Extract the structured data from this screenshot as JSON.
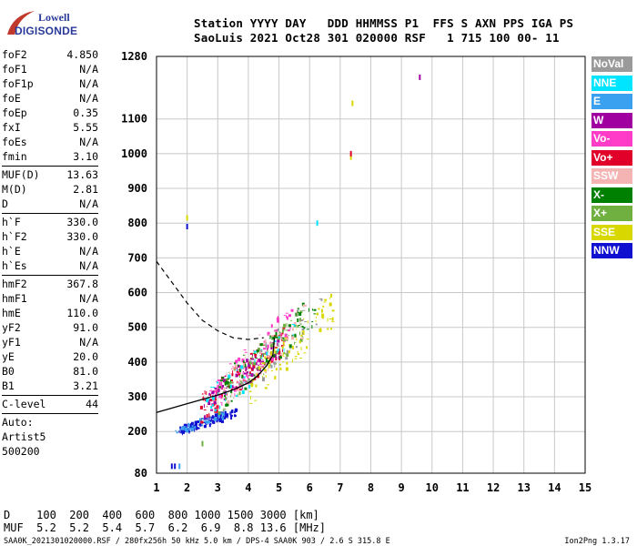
{
  "logo": {
    "line1": "Lowell",
    "line2": "DIGISONDE"
  },
  "header": {
    "line1": "Station YYYY DAY   DDD HHMMSS P1  FFS S AXN PPS IGA PS",
    "line2": "SaoLuis 2021 Oct28 301 020000 RSF   1 715 100 00- 11"
  },
  "params_group1": [
    {
      "name": "foF2",
      "value": "4.850"
    },
    {
      "name": "foF1",
      "value": "N/A"
    },
    {
      "name": "foF1p",
      "value": "N/A"
    },
    {
      "name": "foE",
      "value": "N/A"
    },
    {
      "name": "foEp",
      "value": "0.35"
    },
    {
      "name": "fxI",
      "value": "5.55"
    },
    {
      "name": "foEs",
      "value": "N/A"
    },
    {
      "name": "fmin",
      "value": "3.10"
    }
  ],
  "params_group2": [
    {
      "name": "MUF(D)",
      "value": "13.63"
    },
    {
      "name": "M(D)",
      "value": "2.81"
    },
    {
      "name": "D",
      "value": "N/A"
    }
  ],
  "params_group3": [
    {
      "name": "h`F",
      "value": "330.0"
    },
    {
      "name": "h`F2",
      "value": "330.0"
    },
    {
      "name": "h`E",
      "value": "N/A"
    },
    {
      "name": "h`Es",
      "value": "N/A"
    }
  ],
  "params_group4": [
    {
      "name": "hmF2",
      "value": "367.8"
    },
    {
      "name": "hmF1",
      "value": "N/A"
    },
    {
      "name": "hmE",
      "value": "110.0"
    },
    {
      "name": "yF2",
      "value": "91.0"
    },
    {
      "name": "yF1",
      "value": "N/A"
    },
    {
      "name": "yE",
      "value": "20.0"
    },
    {
      "name": "B0",
      "value": "81.0"
    },
    {
      "name": "B1",
      "value": "3.21"
    }
  ],
  "params_group5": [
    {
      "name": "C-level",
      "value": "44"
    }
  ],
  "autoscaling": {
    "line1": "Auto:",
    "line2": "Artist5",
    "line3": "500200"
  },
  "legend": [
    {
      "label": "NoVal",
      "color": "#9a9a9a"
    },
    {
      "label": "NNE",
      "color": "#00e5ff"
    },
    {
      "label": "E",
      "color": "#3aa0f0"
    },
    {
      "label": "W",
      "color": "#a000a0"
    },
    {
      "label": "Vo-",
      "color": "#ff3cc8"
    },
    {
      "label": "Vo+",
      "color": "#e0002a"
    },
    {
      "label": "SSW",
      "color": "#f4b4b4"
    },
    {
      "label": "X-",
      "color": "#008000"
    },
    {
      "label": "X+",
      "color": "#70b040"
    },
    {
      "label": "SSE",
      "color": "#d8d800"
    },
    {
      "label": "NNW",
      "color": "#1010d0"
    }
  ],
  "muf_table": {
    "line1": "D    100  200  400  600  800 1000 1500 3000 [km]",
    "line2": "MUF  5.2  5.2  5.4  5.7  6.2  6.9  8.8 13.6 [MHz]"
  },
  "footer": {
    "left": "SAA0K_2021301020000.RSF / 280fx256h 50 kHz 5.0 km / DPS-4 SAA0K 903 / 2.6 S 315.8 E",
    "right": "Ion2Png 1.3.17"
  },
  "chart_data": {
    "type": "scatter",
    "title": "",
    "xlabel": "",
    "ylabel": "",
    "xlim": [
      1,
      15
    ],
    "ylim": [
      80,
      1280
    ],
    "xticks": [
      "1",
      "2",
      "3",
      "4",
      "5",
      "6",
      "7",
      "8",
      "9",
      "10",
      "11",
      "12",
      "13",
      "14",
      "15"
    ],
    "yticks": [
      "80",
      "200",
      "300",
      "400",
      "500",
      "600",
      "700",
      "800",
      "900",
      "1000",
      "1100",
      "1280"
    ],
    "grid": true,
    "trace_curve": {
      "x": [
        1.0,
        2.0,
        3.0,
        3.5,
        4.0,
        4.3,
        4.6,
        4.8,
        4.85
      ],
      "y": [
        255,
        280,
        305,
        320,
        340,
        360,
        390,
        420,
        470
      ]
    },
    "dashed_curve": {
      "x": [
        1.0,
        1.5,
        2.0,
        2.5,
        3.0,
        3.5,
        4.0,
        4.5
      ],
      "y": [
        690,
        630,
        570,
        520,
        490,
        470,
        465,
        470
      ]
    },
    "clusters": [
      {
        "series": "NNW",
        "x": [
          1.7,
          3.6
        ],
        "y": [
          200,
          270
        ],
        "n": 140
      },
      {
        "series": "E",
        "x": [
          1.6,
          3.2
        ],
        "y": [
          200,
          260
        ],
        "n": 40
      },
      {
        "series": "Vo+",
        "x": [
          2.4,
          5.2
        ],
        "y": [
          250,
          500
        ],
        "n": 140
      },
      {
        "series": "Vo-",
        "x": [
          2.6,
          5.4
        ],
        "y": [
          260,
          560
        ],
        "n": 100
      },
      {
        "series": "W",
        "x": [
          2.5,
          5.0
        ],
        "y": [
          260,
          480
        ],
        "n": 80
      },
      {
        "series": "X+",
        "x": [
          3.0,
          5.8
        ],
        "y": [
          280,
          550
        ],
        "n": 80
      },
      {
        "series": "X-",
        "x": [
          3.0,
          6.2
        ],
        "y": [
          280,
          600
        ],
        "n": 70
      },
      {
        "series": "SSE",
        "x": [
          4.0,
          6.8
        ],
        "y": [
          300,
          600
        ],
        "n": 90
      },
      {
        "series": "SSW",
        "x": [
          3.0,
          6.0
        ],
        "y": [
          280,
          580
        ],
        "n": 50
      },
      {
        "series": "NNE",
        "x": [
          2.6,
          5.6
        ],
        "y": [
          260,
          520
        ],
        "n": 40
      },
      {
        "series": "NoVal",
        "x": [
          3.5,
          6.5
        ],
        "y": [
          300,
          620
        ],
        "n": 30
      }
    ],
    "isolated_points": [
      {
        "series": "W",
        "x": 9.6,
        "y": 1220
      },
      {
        "series": "SSE",
        "x": 7.4,
        "y": 1145
      },
      {
        "series": "SSE",
        "x": 7.35,
        "y": 990
      },
      {
        "series": "Vo+",
        "x": 7.35,
        "y": 1000
      },
      {
        "series": "NNW",
        "x": 2.0,
        "y": 790
      },
      {
        "series": "SSE",
        "x": 2.0,
        "y": 815
      },
      {
        "series": "E",
        "x": 1.75,
        "y": 100
      },
      {
        "series": "NNW",
        "x": 1.5,
        "y": 100
      },
      {
        "series": "NNW",
        "x": 1.6,
        "y": 100
      },
      {
        "series": "X+",
        "x": 2.5,
        "y": 165
      },
      {
        "series": "NNE",
        "x": 6.25,
        "y": 800
      }
    ]
  }
}
